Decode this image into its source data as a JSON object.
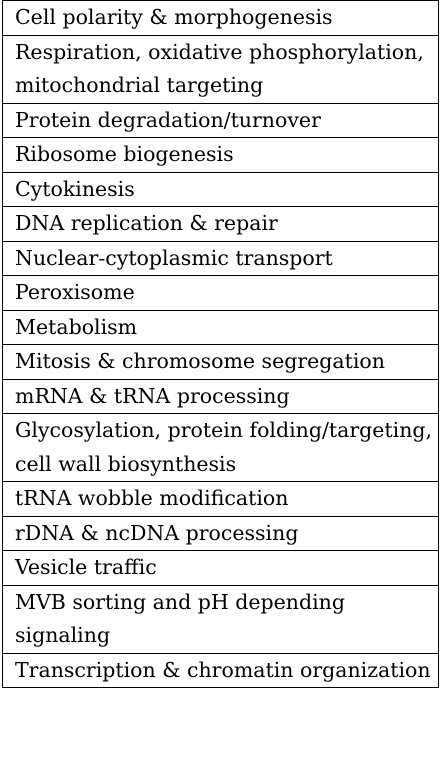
{
  "categories": [
    "Cell polarity & morphogenesis",
    "Respiration, oxidative phosphorylation, mitochondrial targeting",
    "Protein degradation/turnover",
    "Ribosome biogenesis",
    "Cytokinesis",
    "DNA replication & repair",
    "Nuclear-cytoplasmic transport",
    "Peroxisome",
    "Metabolism",
    "Mitosis & chromosome segregation",
    "mRNA & tRNA processing",
    "Glycosylation, protein folding/targeting, cell wall biosynthesis",
    "tRNA wobble modification",
    "rDNA & ncDNA processing",
    "Vesicle traffic",
    "MVB sorting and pH depending signaling",
    "Transcription & chromatin organization"
  ]
}
